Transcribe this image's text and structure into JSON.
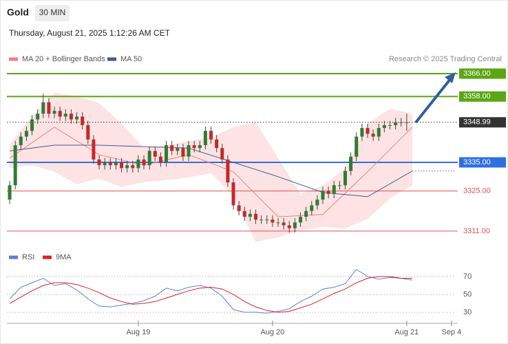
{
  "header": {
    "symbol": "Gold",
    "interval": "30 MIN",
    "timestamp": "Thursday, August 21, 2025 1:12:26 AM CET",
    "credit": "Research © 2025 Trading Central"
  },
  "chart_data": [
    {
      "type": "candlestick",
      "xlim": [
        -1,
        160
      ],
      "ylim": [
        3306.4,
        3377.3
      ],
      "up_color": "#2e7d32",
      "down_color": "#c62828",
      "x": [
        0,
        2,
        4,
        6,
        8,
        10,
        12,
        14,
        16,
        18,
        20,
        22,
        24,
        26,
        28,
        30,
        32,
        34,
        36,
        38,
        40,
        42,
        44,
        46,
        48,
        50,
        52,
        54,
        56,
        58,
        60,
        62,
        64,
        66,
        68,
        70,
        72,
        74,
        76,
        78,
        80,
        82,
        84,
        86,
        88,
        90,
        92,
        94,
        96,
        98,
        100,
        102,
        104,
        106,
        108,
        110,
        112,
        114,
        116,
        118,
        120,
        122,
        124,
        126,
        128,
        130,
        132,
        134,
        136,
        138,
        140,
        142
      ],
      "open": [
        3322,
        3327,
        3341,
        3344,
        3346,
        3350,
        3352,
        3356,
        3352,
        3353,
        3351,
        3352,
        3350,
        3351,
        3348,
        3343,
        3336,
        3334,
        3335,
        3334,
        3335,
        3333,
        3334,
        3333,
        3336,
        3334,
        3339,
        3337,
        3335,
        3341,
        3339,
        3340,
        3337,
        3341,
        3340,
        3341,
        3346,
        3343,
        3340,
        3336,
        3328,
        3320,
        3318,
        3316,
        3317,
        3315,
        3315,
        3315,
        3314,
        3314,
        3313,
        3312,
        3314,
        3316,
        3318,
        3320,
        3322,
        3325,
        3324,
        3327,
        3327,
        3332,
        3337,
        3344,
        3347,
        3345,
        3344,
        3347,
        3348,
        3348,
        3349,
        3349
      ],
      "high": [
        3328.5,
        3342.5,
        3345.5,
        3347.5,
        3351.5,
        3353.5,
        3359,
        3357.5,
        3354.5,
        3354.5,
        3353.5,
        3353.5,
        3352.5,
        3352.5,
        3349.5,
        3344.5,
        3337.5,
        3336.5,
        3336.5,
        3336.5,
        3336.5,
        3335.5,
        3335.5,
        3337.5,
        3337.5,
        3340.5,
        3340.5,
        3338.5,
        3342.5,
        3342.5,
        3341.5,
        3341.5,
        3342.5,
        3342.5,
        3342.5,
        3347.5,
        3347.5,
        3344.5,
        3341.5,
        3337.5,
        3329.5,
        3321.5,
        3319.5,
        3318.5,
        3318.5,
        3316.5,
        3316.5,
        3316.5,
        3315.5,
        3315.5,
        3314.5,
        3315.5,
        3317.5,
        3319.5,
        3321.5,
        3323.5,
        3326.5,
        3326.5,
        3328.5,
        3328.5,
        3333.5,
        3338.5,
        3345.5,
        3348.5,
        3348.5,
        3346.5,
        3348.5,
        3349.5,
        3349.5,
        3350.5,
        3350.5,
        3352
      ],
      "low": [
        3320.5,
        3325.5,
        3339.5,
        3342.5,
        3344.5,
        3348.5,
        3350.5,
        3350.5,
        3350.5,
        3349.5,
        3349.5,
        3348.5,
        3348.5,
        3346.5,
        3341.5,
        3334.5,
        3332.5,
        3332.5,
        3332.5,
        3332.5,
        3331.5,
        3331.5,
        3331.5,
        3331.5,
        3332.5,
        3332.5,
        3335.5,
        3333.5,
        3333.5,
        3337.5,
        3337.5,
        3335.5,
        3335.5,
        3338.5,
        3338.5,
        3339.5,
        3341.5,
        3338.5,
        3334.5,
        3326.5,
        3318.5,
        3316.5,
        3314.5,
        3314.5,
        3313.5,
        3313.5,
        3313.5,
        3312.5,
        3312.5,
        3311.5,
        3310.5,
        3310.5,
        3312.5,
        3314.5,
        3316.5,
        3318.5,
        3320.5,
        3322.5,
        3322.5,
        3325.5,
        3325.5,
        3330.5,
        3335.5,
        3342.5,
        3343.5,
        3342.5,
        3342.5,
        3345.5,
        3346.5,
        3346.5,
        3347.5,
        3346
      ],
      "close": [
        3327,
        3341,
        3344,
        3346,
        3350,
        3352,
        3356,
        3352,
        3353,
        3351,
        3352,
        3350,
        3351,
        3348,
        3343,
        3336,
        3334,
        3335,
        3334,
        3335,
        3333,
        3334,
        3333,
        3336,
        3334,
        3339,
        3337,
        3335,
        3341,
        3339,
        3340,
        3337,
        3341,
        3340,
        3341,
        3346,
        3343,
        3340,
        3336,
        3328,
        3320,
        3318,
        3316,
        3317,
        3315,
        3315,
        3315,
        3314,
        3314,
        3313,
        3312,
        3314,
        3316,
        3318,
        3320,
        3322,
        3325,
        3324,
        3327,
        3327,
        3332,
        3337,
        3344,
        3347,
        3345,
        3344,
        3347,
        3348,
        3348,
        3349,
        3349,
        3349
      ],
      "series": [
        {
          "name": "MA 20 + Bollinger Bands",
          "color": "#f08080",
          "x": [
            0,
            16,
            32,
            48,
            64,
            80,
            96,
            112,
            128,
            144
          ],
          "values": [
            3336.5,
            3347.3,
            3337.7,
            3334,
            3337.7,
            3331.7,
            3316,
            3316.8,
            3331.7,
            3347.3
          ],
          "band": {
            "color": "#fde3e3",
            "x": [
              0,
              8,
              16,
              24,
              32,
              40,
              48,
              56,
              64,
              72,
              80,
              88,
              96,
              104,
              112,
              120,
              128,
              136,
              144
            ],
            "upper": [
              3341.3,
              3350.9,
              3359.3,
              3358.1,
              3355.7,
              3348.5,
              3340.1,
              3340.8,
              3342.5,
              3343.7,
              3347.3,
              3349,
              3336.5,
              3324,
              3326.9,
              3332.9,
              3348.5,
              3353.8,
              3352.1
            ],
            "lower": [
              3332.9,
              3334.1,
              3331.7,
              3327.4,
              3329.3,
              3326.4,
              3328.1,
              3328.8,
              3329.7,
              3331.2,
              3323.3,
              3307.2,
              3308.8,
              3311.2,
              3312.4,
              3311.9,
              3315.3,
              3322.5,
              3326.9
            ]
          }
        },
        {
          "name": "MA 50",
          "color": "#3d5a99",
          "x": [
            0,
            16,
            32,
            48,
            64,
            80,
            96,
            112,
            128,
            144
          ],
          "values": [
            3339,
            3341,
            3341,
            3340.5,
            3340,
            3335,
            3330,
            3324.5,
            3323,
            3332
          ]
        }
      ],
      "levels": [
        {
          "value": 3366,
          "label": "3366.00",
          "color": "#5aa614",
          "box": true,
          "dotted": false
        },
        {
          "value": 3358,
          "label": "3358.00",
          "color": "#5aa614",
          "box": true,
          "dotted": false
        },
        {
          "value": 3348.99,
          "label": "3348.99",
          "color": "#333333",
          "box": true,
          "dotted": true
        },
        {
          "value": 3335,
          "label": "3335.00",
          "color": "#2f6fe0",
          "box": true,
          "dotted": false
        },
        {
          "value": 3325,
          "label": "3325.00",
          "color": "#e05050",
          "box": false,
          "dotted": false
        },
        {
          "value": 3311,
          "label": "3311.00",
          "color": "#e05050",
          "box": false,
          "dotted": false
        }
      ]
    },
    {
      "type": "line",
      "xlim": [
        -1,
        160
      ],
      "ylim": [
        21.5,
        83
      ],
      "yticks": [
        30,
        50,
        70
      ],
      "grid": true,
      "xticks": [
        {
          "value": 46,
          "label": "Aug 19"
        },
        {
          "value": 94,
          "label": "Aug 20"
        },
        {
          "value": 142,
          "label": "Aug 21"
        },
        {
          "value": 158,
          "label": "Sep 4"
        }
      ],
      "series": [
        {
          "name": "RSI",
          "color": "#5b7fd6",
          "x": [
            0,
            4,
            8,
            12,
            16,
            20,
            24,
            28,
            32,
            36,
            40,
            44,
            48,
            52,
            56,
            60,
            64,
            68,
            72,
            76,
            80,
            84,
            88,
            92,
            96,
            100,
            104,
            108,
            112,
            116,
            120,
            124,
            128,
            132,
            136,
            140,
            144
          ],
          "values": [
            45,
            58,
            63,
            68,
            60,
            62,
            55,
            45,
            37,
            36,
            38,
            40,
            43,
            48,
            57,
            54,
            58,
            60,
            57,
            48,
            33,
            30,
            30,
            29,
            31,
            34,
            42,
            48,
            56,
            58,
            62,
            78,
            70,
            67,
            69,
            68,
            66
          ]
        },
        {
          "name": "9MA",
          "color": "#e02020",
          "x": [
            0,
            4,
            8,
            12,
            16,
            20,
            24,
            28,
            32,
            36,
            40,
            44,
            48,
            52,
            56,
            60,
            64,
            68,
            72,
            76,
            80,
            84,
            88,
            92,
            96,
            100,
            104,
            108,
            112,
            116,
            120,
            124,
            128,
            132,
            136,
            140,
            144
          ],
          "values": [
            40,
            47,
            54,
            60,
            63,
            63,
            61,
            57,
            52,
            46,
            42,
            39,
            40,
            42,
            46,
            50,
            54,
            57,
            58,
            56,
            50,
            42,
            36,
            32,
            30,
            31,
            35,
            39,
            45,
            51,
            56,
            63,
            68,
            70,
            70,
            68,
            68
          ]
        }
      ]
    }
  ]
}
